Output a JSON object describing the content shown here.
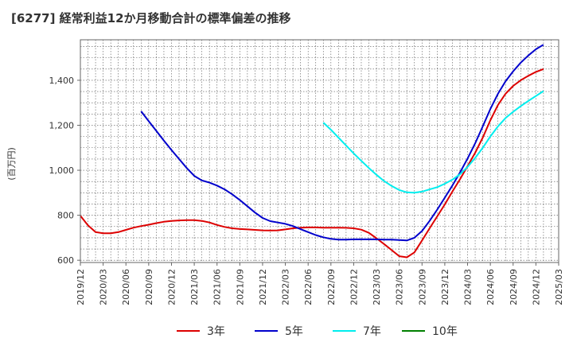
{
  "chart_data": {
    "type": "line",
    "title": "[6277]  経常利益12か月移動合計の標準偏差の推移",
    "ylabel": "(百万円)",
    "xlabel": "",
    "ylim": [
      590,
      1580
    ],
    "y_ticks": [
      600,
      800,
      1000,
      1200,
      1400
    ],
    "y_tick_labels": [
      "600",
      "800",
      "1,000",
      "1,200",
      "1,400"
    ],
    "x_ticks": [
      "2019/12",
      "2020/03",
      "2020/06",
      "2020/09",
      "2020/12",
      "2021/03",
      "2021/06",
      "2021/09",
      "2021/12",
      "2022/03",
      "2022/06",
      "2022/09",
      "2022/12",
      "2023/03",
      "2023/06",
      "2023/09",
      "2023/12",
      "2024/03",
      "2024/06",
      "2024/09",
      "2024/12",
      "2025/03"
    ],
    "grid": true,
    "legend_position": "bottom",
    "series": [
      {
        "name": "3年",
        "color": "#dd0000",
        "points": [
          [
            "2019/12",
            798
          ],
          [
            "2020/01",
            755
          ],
          [
            "2020/02",
            725
          ],
          [
            "2020/03",
            720
          ],
          [
            "2020/04",
            720
          ],
          [
            "2020/05",
            725
          ],
          [
            "2020/06",
            735
          ],
          [
            "2020/07",
            745
          ],
          [
            "2020/08",
            752
          ],
          [
            "2020/09",
            758
          ],
          [
            "2020/10",
            765
          ],
          [
            "2020/11",
            771
          ],
          [
            "2020/12",
            775
          ],
          [
            "2021/01",
            777
          ],
          [
            "2021/02",
            778
          ],
          [
            "2021/03",
            778
          ],
          [
            "2021/04",
            775
          ],
          [
            "2021/05",
            768
          ],
          [
            "2021/06",
            757
          ],
          [
            "2021/07",
            748
          ],
          [
            "2021/08",
            742
          ],
          [
            "2021/09",
            739
          ],
          [
            "2021/10",
            737
          ],
          [
            "2021/11",
            735
          ],
          [
            "2021/12",
            733
          ],
          [
            "2022/01",
            732
          ],
          [
            "2022/02",
            733
          ],
          [
            "2022/03",
            737
          ],
          [
            "2022/04",
            742
          ],
          [
            "2022/05",
            745
          ],
          [
            "2022/06",
            746
          ],
          [
            "2022/07",
            746
          ],
          [
            "2022/08",
            745
          ],
          [
            "2022/09",
            745
          ],
          [
            "2022/10",
            745
          ],
          [
            "2022/11",
            744
          ],
          [
            "2022/12",
            742
          ],
          [
            "2023/01",
            736
          ],
          [
            "2023/02",
            722
          ],
          [
            "2023/03",
            698
          ],
          [
            "2023/04",
            672
          ],
          [
            "2023/05",
            645
          ],
          [
            "2023/06",
            618
          ],
          [
            "2023/07",
            613
          ],
          [
            "2023/08",
            635
          ],
          [
            "2023/09",
            688
          ],
          [
            "2023/10",
            742
          ],
          [
            "2023/11",
            795
          ],
          [
            "2023/12",
            848
          ],
          [
            "2024/01",
            905
          ],
          [
            "2024/02",
            960
          ],
          [
            "2024/03",
            1018
          ],
          [
            "2024/04",
            1078
          ],
          [
            "2024/05",
            1145
          ],
          [
            "2024/06",
            1222
          ],
          [
            "2024/07",
            1290
          ],
          [
            "2024/08",
            1340
          ],
          [
            "2024/09",
            1375
          ],
          [
            "2024/10",
            1400
          ],
          [
            "2024/11",
            1420
          ],
          [
            "2024/12",
            1437
          ],
          [
            "2025/01",
            1450
          ]
        ]
      },
      {
        "name": "5年",
        "color": "#0000cc",
        "points": [
          [
            "2020/08",
            1262
          ],
          [
            "2020/09",
            1218
          ],
          [
            "2020/10",
            1175
          ],
          [
            "2020/11",
            1132
          ],
          [
            "2020/12",
            1090
          ],
          [
            "2021/01",
            1050
          ],
          [
            "2021/02",
            1010
          ],
          [
            "2021/03",
            975
          ],
          [
            "2021/04",
            955
          ],
          [
            "2021/05",
            945
          ],
          [
            "2021/06",
            932
          ],
          [
            "2021/07",
            915
          ],
          [
            "2021/08",
            893
          ],
          [
            "2021/09",
            868
          ],
          [
            "2021/10",
            840
          ],
          [
            "2021/11",
            812
          ],
          [
            "2021/12",
            788
          ],
          [
            "2022/01",
            774
          ],
          [
            "2022/02",
            768
          ],
          [
            "2022/03",
            762
          ],
          [
            "2022/04",
            752
          ],
          [
            "2022/05",
            738
          ],
          [
            "2022/06",
            725
          ],
          [
            "2022/07",
            712
          ],
          [
            "2022/08",
            702
          ],
          [
            "2022/09",
            695
          ],
          [
            "2022/10",
            692
          ],
          [
            "2022/11",
            692
          ],
          [
            "2022/12",
            693
          ],
          [
            "2023/01",
            693
          ],
          [
            "2023/02",
            693
          ],
          [
            "2023/03",
            693
          ],
          [
            "2023/04",
            692
          ],
          [
            "2023/05",
            692
          ],
          [
            "2023/06",
            690
          ],
          [
            "2023/07",
            688
          ],
          [
            "2023/08",
            700
          ],
          [
            "2023/09",
            730
          ],
          [
            "2023/10",
            775
          ],
          [
            "2023/11",
            825
          ],
          [
            "2023/12",
            878
          ],
          [
            "2024/01",
            932
          ],
          [
            "2024/02",
            990
          ],
          [
            "2024/03",
            1052
          ],
          [
            "2024/04",
            1120
          ],
          [
            "2024/05",
            1195
          ],
          [
            "2024/06",
            1272
          ],
          [
            "2024/07",
            1340
          ],
          [
            "2024/08",
            1395
          ],
          [
            "2024/09",
            1440
          ],
          [
            "2024/10",
            1478
          ],
          [
            "2024/11",
            1510
          ],
          [
            "2024/12",
            1538
          ],
          [
            "2025/01",
            1558
          ]
        ]
      },
      {
        "name": "7年",
        "color": "#00eeee",
        "points": [
          [
            "2022/08",
            1212
          ],
          [
            "2022/09",
            1180
          ],
          [
            "2022/10",
            1145
          ],
          [
            "2022/11",
            1110
          ],
          [
            "2022/12",
            1075
          ],
          [
            "2023/01",
            1042
          ],
          [
            "2023/02",
            1010
          ],
          [
            "2023/03",
            980
          ],
          [
            "2023/04",
            952
          ],
          [
            "2023/05",
            930
          ],
          [
            "2023/06",
            912
          ],
          [
            "2023/07",
            902
          ],
          [
            "2023/08",
            900
          ],
          [
            "2023/09",
            905
          ],
          [
            "2023/10",
            915
          ],
          [
            "2023/11",
            925
          ],
          [
            "2023/12",
            940
          ],
          [
            "2024/01",
            958
          ],
          [
            "2024/02",
            982
          ],
          [
            "2024/03",
            1015
          ],
          [
            "2024/04",
            1055
          ],
          [
            "2024/05",
            1100
          ],
          [
            "2024/06",
            1150
          ],
          [
            "2024/07",
            1195
          ],
          [
            "2024/08",
            1232
          ],
          [
            "2024/09",
            1260
          ],
          [
            "2024/10",
            1285
          ],
          [
            "2024/11",
            1308
          ],
          [
            "2024/12",
            1330
          ],
          [
            "2025/01",
            1352
          ]
        ]
      },
      {
        "name": "10年",
        "color": "#008000",
        "points": []
      }
    ]
  }
}
